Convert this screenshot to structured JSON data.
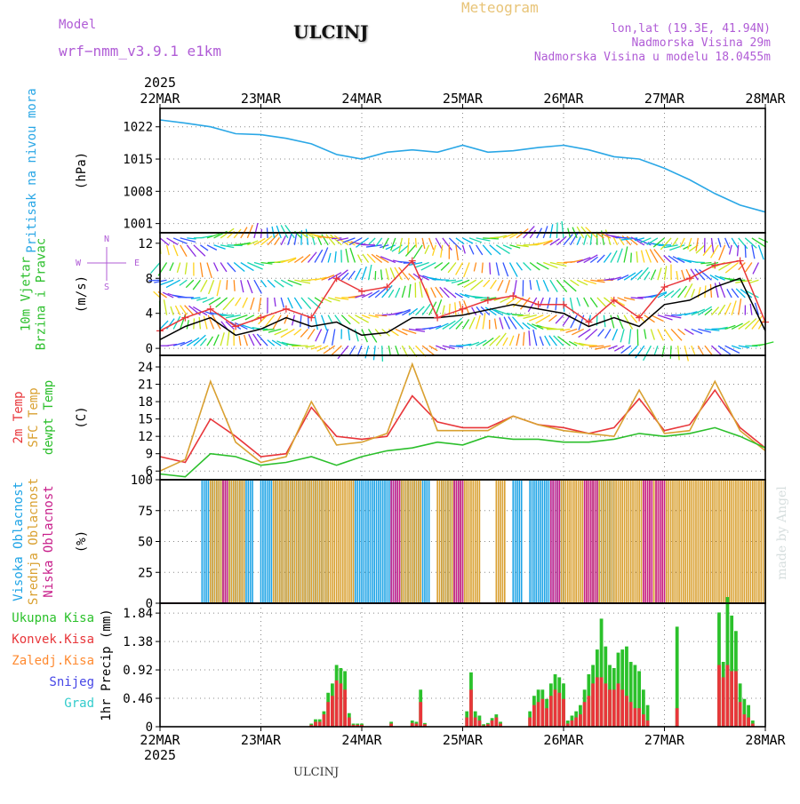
{
  "header": {
    "model_label": "Model",
    "model_name": "wrf−nmm_v3.9.1  e1km",
    "station": "ULCINJ",
    "meteogram": "Meteogram",
    "lonlat": "lon,lat (19.3E, 41.94N)",
    "altitude": "Nadmorska Visina 29m",
    "model_altitude": "Nadmorska Visina u modelu 18.0455m",
    "year_top": "2025",
    "year_bottom": "2025",
    "footer_station": "ULCINJ",
    "credit": "made by Angel"
  },
  "colors": {
    "pressure": "#2aa7e6",
    "wind_speed": "#000000",
    "wind_gust": "#e8363a",
    "temp2m": "#e8363a",
    "sfc_temp": "#d9a030",
    "dewpt": "#2bbf2b",
    "cloud_high": "#1ea4e6",
    "cloud_mid": "#d9a030",
    "cloud_low": "#c81e8a",
    "precip_total": "#2bc12b",
    "precip_conv": "#e8363a",
    "precip_frozen": "#ff8a30",
    "snow": "#4646e6",
    "graupel": "#33cccc"
  },
  "chart_data": [
    {
      "type": "line",
      "title": "",
      "panel_labels": [
        "Pritisak na nivou mora"
      ],
      "ylabel": "(hPa)",
      "ylim": [
        999,
        1026
      ],
      "yticks": [
        "1001",
        "1008",
        "1015",
        "1022"
      ],
      "x_hours": [
        0,
        6,
        12,
        18,
        24,
        30,
        36,
        42,
        48,
        54,
        60,
        66,
        72,
        78,
        84,
        90,
        96,
        102,
        108,
        114,
        120,
        126,
        132,
        138,
        144
      ],
      "series": [
        {
          "key": "pressure",
          "values": [
            1023.5,
            1022.8,
            1022,
            1020.5,
            1020.3,
            1019.5,
            1018.3,
            1016,
            1015,
            1016.5,
            1017,
            1016.5,
            1018,
            1016.5,
            1016.8,
            1017.5,
            1018,
            1017,
            1015.5,
            1015,
            1013,
            1010.5,
            1007.5,
            1005,
            1003.5
          ]
        }
      ]
    },
    {
      "type": "line",
      "title": "",
      "panel_labels": [
        "10m Vjetar",
        "Brzina i Pravac"
      ],
      "ylabel": "(m/s)",
      "ylim": [
        -0.8,
        13.2
      ],
      "yticks": [
        "0",
        "4",
        "8",
        "12"
      ],
      "compass": {
        "n": "N",
        "s": "S",
        "w": "W",
        "e": "E"
      },
      "x_hours": [
        0,
        6,
        12,
        18,
        24,
        30,
        36,
        42,
        48,
        54,
        60,
        66,
        72,
        78,
        84,
        90,
        96,
        102,
        108,
        114,
        120,
        126,
        132,
        138,
        144
      ],
      "series": [
        {
          "key": "wind_speed",
          "values": [
            1,
            2.5,
            3.5,
            1.5,
            2.2,
            3.5,
            2.5,
            3,
            1.5,
            1.8,
            3.5,
            3.5,
            3.8,
            4.4,
            5,
            4.5,
            4,
            2.5,
            3.5,
            2.5,
            5,
            5.5,
            7,
            8,
            2
          ]
        },
        {
          "key": "wind_gust",
          "values": [
            2,
            3.5,
            4.5,
            2.5,
            3.5,
            4.5,
            3.5,
            8,
            6.5,
            7,
            10,
            3.5,
            4.5,
            5.5,
            6,
            5,
            5,
            3,
            5.5,
            3.5,
            7,
            8,
            9.5,
            10,
            3
          ]
        }
      ]
    },
    {
      "type": "line",
      "title": "",
      "panel_labels": [
        "2m Temp",
        "SFC Temp",
        "dewpt Temp"
      ],
      "ylabel": "(C)",
      "ylim": [
        4.5,
        26
      ],
      "yticks": [
        "6",
        "9",
        "12",
        "15",
        "18",
        "21",
        "24"
      ],
      "x_hours": [
        0,
        6,
        12,
        18,
        24,
        30,
        36,
        42,
        48,
        54,
        60,
        66,
        72,
        78,
        84,
        90,
        96,
        102,
        108,
        114,
        120,
        126,
        132,
        138,
        144
      ],
      "series": [
        {
          "key": "temp2m",
          "values": [
            8.5,
            7.5,
            15,
            12,
            8.5,
            9,
            17,
            12,
            11.5,
            12,
            19,
            14.5,
            13.5,
            13.5,
            15.5,
            14,
            13.5,
            12.5,
            13.5,
            18.5,
            13,
            14,
            20,
            13.5,
            10
          ]
        },
        {
          "key": "sfc_temp",
          "values": [
            6,
            8,
            21.5,
            11,
            7.5,
            8.5,
            18,
            10.5,
            11,
            12.5,
            24.5,
            13,
            13,
            13,
            15.5,
            14,
            13,
            12.5,
            12,
            20,
            12.5,
            13,
            21.5,
            13,
            9.5
          ]
        },
        {
          "key": "dewpt",
          "values": [
            5.5,
            5,
            9,
            8.5,
            7,
            7.5,
            8.5,
            7,
            8.5,
            9.5,
            10,
            11,
            10.5,
            12,
            11.5,
            11.5,
            11,
            11,
            11.5,
            12.5,
            12,
            12.5,
            13.5,
            12,
            10
          ]
        }
      ]
    },
    {
      "type": "bar",
      "title": "",
      "panel_labels": [
        "Visoka Oblacnost",
        "Srednja Oblacnost",
        "Niska Oblacnost"
      ],
      "ylabel": "(%)",
      "ylim": [
        0,
        100
      ],
      "yticks": [
        "0",
        "25",
        "50",
        "75",
        "100"
      ],
      "series": [
        {
          "key": "cloud_high",
          "intervals": [
            [
              10,
              22
            ],
            [
              24,
              40
            ],
            [
              46,
              64
            ],
            [
              67,
              72
            ],
            [
              84,
              86
            ],
            [
              88,
              96
            ],
            [
              103,
              108
            ]
          ]
        },
        {
          "key": "cloud_mid",
          "intervals": [
            [
              12,
              20
            ],
            [
              27,
              46
            ],
            [
              57,
              62
            ],
            [
              66,
              76
            ],
            [
              80,
              82
            ],
            [
              95,
              144
            ]
          ]
        },
        {
          "key": "cloud_low",
          "intervals": [
            [
              15,
              16
            ],
            [
              55,
              57
            ],
            [
              70,
              72
            ],
            [
              93,
              95
            ],
            [
              101,
              104
            ],
            [
              115,
              117
            ],
            [
              118,
              120
            ]
          ]
        }
      ]
    },
    {
      "type": "bar",
      "title": "",
      "panel_labels": [
        "Ukupna Kisa",
        "Konvek.Kisa",
        "Zaledj.Kisa",
        "Snijeg",
        "Grad"
      ],
      "ylabel": "1hr Precip (mm)",
      "ylim": [
        0,
        2.0
      ],
      "yticks": [
        "0",
        "0.46",
        "0.92",
        "1.38",
        "1.84"
      ],
      "x_hours": [
        36,
        37,
        38,
        39,
        40,
        41,
        42,
        43,
        44,
        45,
        46,
        47,
        48,
        55,
        60,
        61,
        62,
        63,
        73,
        74,
        75,
        76,
        77,
        78,
        79,
        80,
        81,
        88,
        89,
        90,
        91,
        92,
        93,
        94,
        95,
        96,
        97,
        98,
        99,
        100,
        101,
        102,
        103,
        104,
        105,
        106,
        107,
        108,
        109,
        110,
        111,
        112,
        113,
        114,
        115,
        116,
        123,
        133,
        134,
        135,
        136,
        137,
        138,
        139,
        140,
        141
      ],
      "series": [
        {
          "key": "precip_total",
          "values": [
            0.05,
            0.12,
            0.12,
            0.25,
            0.55,
            0.7,
            1.0,
            0.95,
            0.9,
            0.22,
            0.05,
            0.05,
            0.05,
            0.08,
            0.1,
            0.08,
            0.6,
            0.06,
            0.25,
            0.88,
            0.25,
            0.18,
            0.04,
            0.06,
            0.14,
            0.2,
            0.08,
            0.25,
            0.5,
            0.6,
            0.6,
            0.45,
            0.7,
            0.85,
            0.8,
            0.7,
            0.1,
            0.18,
            0.25,
            0.35,
            0.6,
            0.85,
            1.0,
            1.25,
            1.75,
            1.3,
            1.0,
            0.95,
            1.2,
            1.25,
            1.3,
            1.05,
            1.0,
            0.9,
            0.6,
            0.35,
            1.62,
            1.85,
            1.05,
            2.1,
            1.8,
            1.55,
            0.7,
            0.45,
            0.35,
            0.1
          ]
        },
        {
          "key": "precip_conv",
          "values": [
            0.03,
            0.08,
            0.08,
            0.2,
            0.4,
            0.5,
            0.75,
            0.7,
            0.6,
            0.15,
            0.03,
            0.03,
            0.03,
            0.05,
            0.06,
            0.05,
            0.4,
            0.04,
            0.15,
            0.6,
            0.15,
            0.1,
            0.02,
            0.04,
            0.1,
            0.15,
            0.05,
            0.15,
            0.35,
            0.4,
            0.45,
            0.3,
            0.5,
            0.6,
            0.55,
            0.45,
            0.05,
            0.1,
            0.15,
            0.2,
            0.4,
            0.5,
            0.7,
            0.8,
            0.8,
            0.7,
            0.6,
            0.6,
            0.7,
            0.6,
            0.5,
            0.4,
            0.3,
            0.3,
            0.2,
            0.1,
            0.3,
            1.0,
            0.8,
            1.0,
            0.9,
            0.9,
            0.4,
            0.2,
            0.15,
            0.05
          ]
        }
      ]
    }
  ],
  "time_axis": {
    "hours_total": 144,
    "labels": [
      "22MAR",
      "23MAR",
      "24MAR",
      "25MAR",
      "26MAR",
      "27MAR",
      "28MAR"
    ]
  }
}
